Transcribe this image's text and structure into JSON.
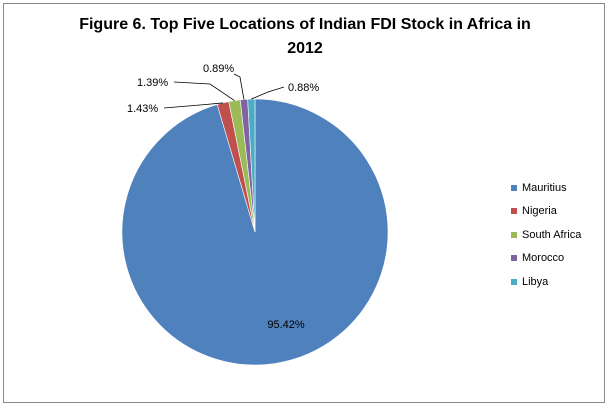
{
  "chart_data": {
    "type": "pie",
    "title": "Figure 6.  Top Five Locations of Indian FDI Stock in Africa in 2012",
    "categories": [
      "Mauritius",
      "Nigeria",
      "South Africa",
      "Morocco",
      "Libya"
    ],
    "values": [
      95.42,
      1.43,
      1.39,
      0.89,
      0.88
    ],
    "data_labels": [
      "95.42%",
      "1.43%",
      "1.39%",
      "0.89%",
      "0.88%"
    ],
    "colors": [
      "#4f81bd",
      "#c0504d",
      "#9bbb59",
      "#8064a2",
      "#4bacc6"
    ],
    "legend_placement": "right"
  }
}
